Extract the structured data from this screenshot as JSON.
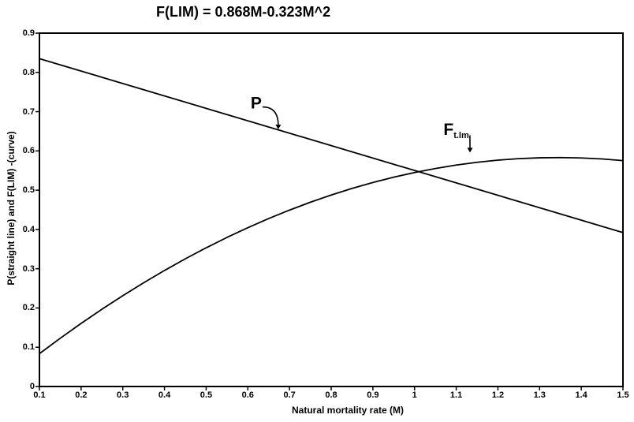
{
  "figure": {
    "title": "F(LIM) = 0.868M-0.323M^2",
    "x_axis": {
      "label": "Natural mortality rate (M)",
      "ticks": [
        "0.1",
        "0.2",
        "0.3",
        "0.4",
        "0.5",
        "0.6",
        "0.7",
        "0.8",
        "0.9",
        "1",
        "1.1",
        "1.2",
        "1.3",
        "1.4",
        "1.5"
      ]
    },
    "y_axis": {
      "label": "P(straight line) and F(LIM) -(curve)",
      "ticks": [
        "0",
        "0.1",
        "0.2",
        "0.3",
        "0.4",
        "0.5",
        "0.6",
        "0.7",
        "0.8",
        "0.9"
      ]
    }
  },
  "chart_data": {
    "type": "line",
    "title": "F(LIM) = 0.868M-0.323M^2",
    "xlabel": "Natural mortality rate (M)",
    "ylabel": "P(straight line) and F(LIM) -(curve)",
    "xlim": [
      0.1,
      1.5
    ],
    "ylim": [
      0,
      0.9
    ],
    "grid": false,
    "legend": "none (in-plot hook-arrow annotations)",
    "series": [
      {
        "id": "p-straight-line",
        "name": "P (straight line)",
        "x": [
          0.1,
          1.5
        ],
        "y": [
          0.835,
          0.392
        ]
      },
      {
        "id": "flim-curve",
        "name": "F(LIM) curve",
        "formula": "F(LIM) = 0.868M - 0.323M^2",
        "x": [
          0.1,
          0.15,
          0.2,
          0.25,
          0.3,
          0.35,
          0.4,
          0.45,
          0.5,
          0.55,
          0.6,
          0.65,
          0.7,
          0.75,
          0.8,
          0.85,
          0.9,
          0.95,
          1.0,
          1.05,
          1.1,
          1.15,
          1.2,
          1.25,
          1.3,
          1.35,
          1.4,
          1.45,
          1.5
        ],
        "y": [
          0.0836,
          0.1229,
          0.1607,
          0.1968,
          0.2313,
          0.2642,
          0.2955,
          0.3252,
          0.3533,
          0.3797,
          0.4045,
          0.4277,
          0.4493,
          0.4693,
          0.4877,
          0.5044,
          0.5196,
          0.5331,
          0.545,
          0.5553,
          0.564,
          0.571,
          0.5765,
          0.5803,
          0.5825,
          0.5831,
          0.5821,
          0.5795,
          0.5753
        ]
      }
    ],
    "annotations": [
      {
        "text": "P",
        "subscript": "",
        "x": 0.62,
        "y": 0.722,
        "arrow_tip_x": 0.673,
        "arrow_tip_y": 0.655
      },
      {
        "text": "F",
        "subscript": "t.lm",
        "x": 1.1,
        "y": 0.65,
        "arrow_tip_x": 1.133,
        "arrow_tip_y": 0.596
      }
    ]
  },
  "colors": {
    "ink": "#000000",
    "background": "#ffffff"
  }
}
